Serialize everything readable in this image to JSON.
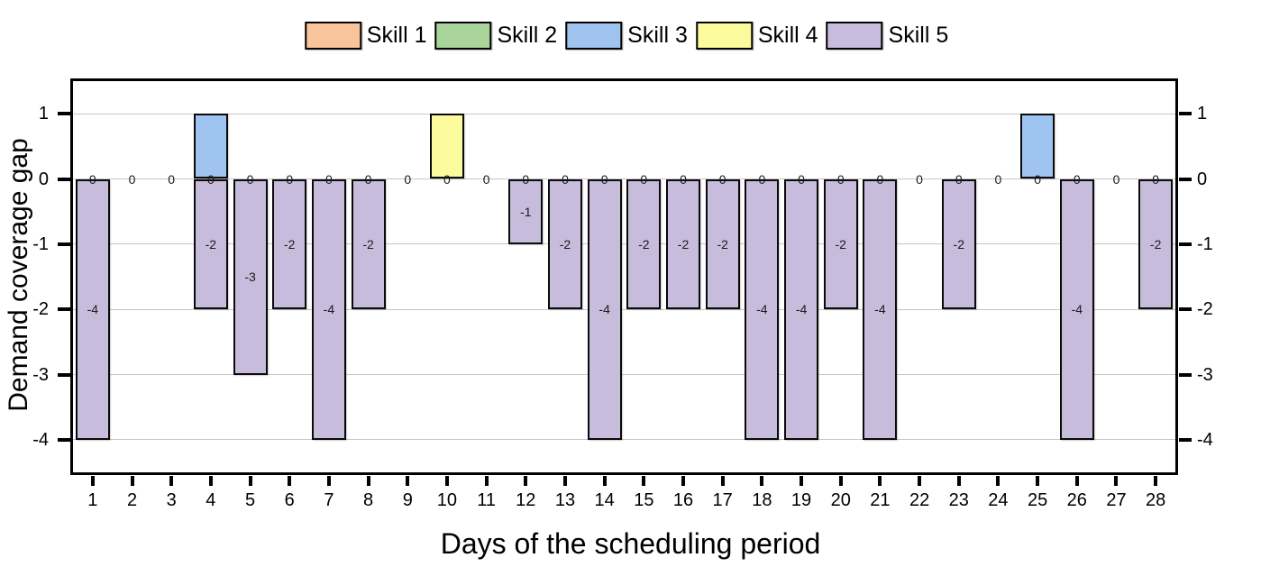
{
  "legend": {
    "items": [
      {
        "label": "Skill 1",
        "color": "#f9c49b"
      },
      {
        "label": "Skill 2",
        "color": "#a8d49a"
      },
      {
        "label": "Skill 3",
        "color": "#a0c4f0"
      },
      {
        "label": "Skill 4",
        "color": "#fbfb9d"
      },
      {
        "label": "Skill 5",
        "color": "#c8bcdc"
      }
    ]
  },
  "chart_data": {
    "type": "bar",
    "stacked": true,
    "title": "",
    "xlabel": "Days of the scheduling period",
    "ylabel": "Demand coverage gap",
    "x": [
      1,
      2,
      3,
      4,
      5,
      6,
      7,
      8,
      9,
      10,
      11,
      12,
      13,
      14,
      15,
      16,
      17,
      18,
      19,
      20,
      21,
      22,
      23,
      24,
      25,
      26,
      27,
      28
    ],
    "ylim": [
      -4.5,
      1.5
    ],
    "yticks": [
      1,
      0,
      -1,
      -2,
      -3,
      -4
    ],
    "grid": true,
    "legend_position": "top-center",
    "dual_y_axis": true,
    "zero_label": "0",
    "grid_color": "#c7c7c7",
    "bar_border_color": "#0a0a0a",
    "series": [
      {
        "name": "Skill 1",
        "color": "#f9c49b",
        "values": [
          0,
          0,
          0,
          0,
          0,
          0,
          0,
          0,
          0,
          0,
          0,
          0,
          0,
          0,
          0,
          0,
          0,
          0,
          0,
          0,
          0,
          0,
          0,
          0,
          0,
          0,
          0,
          0
        ]
      },
      {
        "name": "Skill 2",
        "color": "#a8d49a",
        "values": [
          0,
          0,
          0,
          0,
          0,
          0,
          0,
          0,
          0,
          0,
          0,
          0,
          0,
          0,
          0,
          0,
          0,
          0,
          0,
          0,
          0,
          0,
          0,
          0,
          0,
          0,
          0,
          0
        ]
      },
      {
        "name": "Skill 3",
        "color": "#a0c4f0",
        "values": [
          0,
          0,
          0,
          1,
          0,
          0,
          0,
          0,
          0,
          0,
          0,
          0,
          0,
          0,
          0,
          0,
          0,
          0,
          0,
          0,
          0,
          0,
          0,
          0,
          1,
          0,
          0,
          0
        ]
      },
      {
        "name": "Skill 4",
        "color": "#fbfb9d",
        "values": [
          0,
          0,
          0,
          0,
          0,
          0,
          0,
          0,
          0,
          1,
          0,
          0,
          0,
          0,
          0,
          0,
          0,
          0,
          0,
          0,
          0,
          0,
          0,
          0,
          0,
          0,
          0,
          0
        ]
      },
      {
        "name": "Skill 5",
        "color": "#c8bcdc",
        "values": [
          -4,
          0,
          0,
          -2,
          -3,
          -2,
          -4,
          -2,
          0,
          0,
          0,
          -1,
          -2,
          -4,
          -2,
          -2,
          -2,
          -4,
          -4,
          -2,
          -4,
          0,
          -2,
          0,
          0,
          -4,
          0,
          -2
        ]
      }
    ]
  }
}
